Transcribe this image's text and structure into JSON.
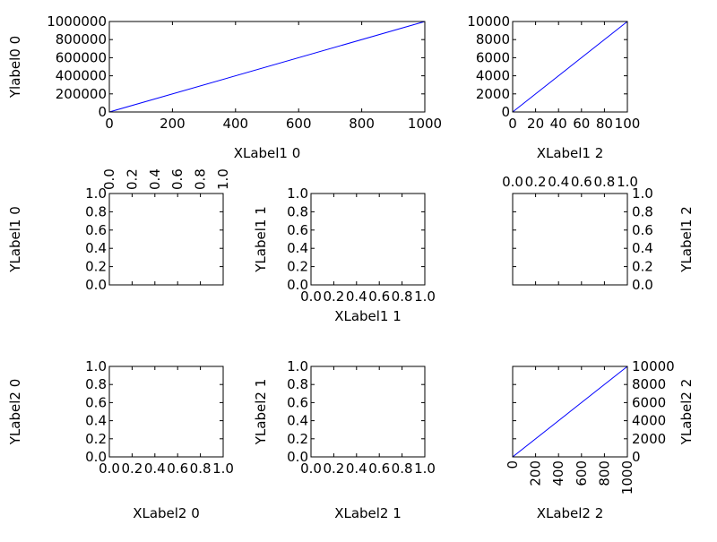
{
  "colors": {
    "line": "#0000ff",
    "axis": "#000000",
    "background": "#ffffff"
  },
  "chart_data": [
    {
      "id": "ax00",
      "type": "line",
      "ylabel": "Ylabel0 0",
      "xlabel_bottom": "XLabel1 0",
      "xlim": [
        0,
        1000
      ],
      "ylim": [
        0,
        1000000
      ],
      "xticks": [
        "0",
        "200",
        "400",
        "600",
        "800",
        "1000"
      ],
      "yticks": [
        "0",
        "200000",
        "400000",
        "600000",
        "800000",
        "1000000"
      ],
      "series": [
        {
          "x": [
            0,
            1000
          ],
          "y": [
            0,
            1000000
          ]
        }
      ],
      "grid": false
    },
    {
      "id": "ax02",
      "type": "line",
      "xlabel_bottom": "XLabel1 2",
      "xlim": [
        0,
        100
      ],
      "ylim": [
        0,
        10000
      ],
      "xticks": [
        "0",
        "20",
        "40",
        "60",
        "80",
        "100"
      ],
      "yticks": [
        "0",
        "2000",
        "4000",
        "6000",
        "8000",
        "10000"
      ],
      "series": [
        {
          "x": [
            0,
            100
          ],
          "y": [
            0,
            10000
          ]
        }
      ],
      "grid": false
    },
    {
      "id": "ax10",
      "type": "line",
      "ylabel": "YLabel1 0",
      "xlim": [
        0,
        1
      ],
      "ylim": [
        0,
        1
      ],
      "xticks_top": [
        "0.0",
        "0.2",
        "0.4",
        "0.6",
        "0.8",
        "1.0"
      ],
      "yticks": [
        "0.0",
        "0.2",
        "0.4",
        "0.6",
        "0.8",
        "1.0"
      ],
      "series": [],
      "grid": false
    },
    {
      "id": "ax11",
      "type": "line",
      "ylabel": "YLabel1 1",
      "xlabel_bottom": "XLabel1 1",
      "xlim": [
        0,
        1
      ],
      "ylim": [
        0,
        1
      ],
      "xticks": [
        "0.0",
        "0.2",
        "0.4",
        "0.6",
        "0.8",
        "1.0"
      ],
      "yticks": [
        "0.0",
        "0.2",
        "0.4",
        "0.6",
        "0.8",
        "1.0"
      ],
      "series": [],
      "grid": false
    },
    {
      "id": "ax12",
      "type": "line",
      "ylabel_right": "YLabel1 2",
      "xlim": [
        0,
        1
      ],
      "ylim": [
        0,
        1
      ],
      "xticks_top": [
        "0.0",
        "0.2",
        "0.4",
        "0.6",
        "0.8",
        "1.0"
      ],
      "yticks_right": [
        "0.0",
        "0.2",
        "0.4",
        "0.6",
        "0.8",
        "1.0"
      ],
      "series": [],
      "grid": false
    },
    {
      "id": "ax20",
      "type": "line",
      "ylabel": "YLabel2 0",
      "xlabel_bottom": "XLabel2 0",
      "xlim": [
        0,
        1
      ],
      "ylim": [
        0,
        1
      ],
      "xticks": [
        "0.0",
        "0.2",
        "0.4",
        "0.6",
        "0.8",
        "1.0"
      ],
      "yticks": [
        "0.0",
        "0.2",
        "0.4",
        "0.6",
        "0.8",
        "1.0"
      ],
      "series": [],
      "grid": false
    },
    {
      "id": "ax21",
      "type": "line",
      "ylabel": "YLabel2 1",
      "xlabel_bottom": "XLabel2 1",
      "xlim": [
        0,
        1
      ],
      "ylim": [
        0,
        1
      ],
      "xticks": [
        "0.0",
        "0.2",
        "0.4",
        "0.6",
        "0.8",
        "1.0"
      ],
      "yticks": [
        "0.0",
        "0.2",
        "0.4",
        "0.6",
        "0.8",
        "1.0"
      ],
      "series": [],
      "grid": false
    },
    {
      "id": "ax22",
      "type": "line",
      "ylabel_right": "YLabel2 2",
      "xlabel_bottom": "XLabel2 2",
      "xlim": [
        0,
        1000
      ],
      "ylim": [
        0,
        10000
      ],
      "xticks_rotated": [
        "0",
        "200",
        "400",
        "600",
        "800",
        "1000"
      ],
      "yticks_right": [
        "0",
        "2000",
        "4000",
        "6000",
        "8000",
        "10000"
      ],
      "series": [
        {
          "x": [
            0,
            1000
          ],
          "y": [
            0,
            10000
          ]
        }
      ],
      "grid": false
    }
  ]
}
